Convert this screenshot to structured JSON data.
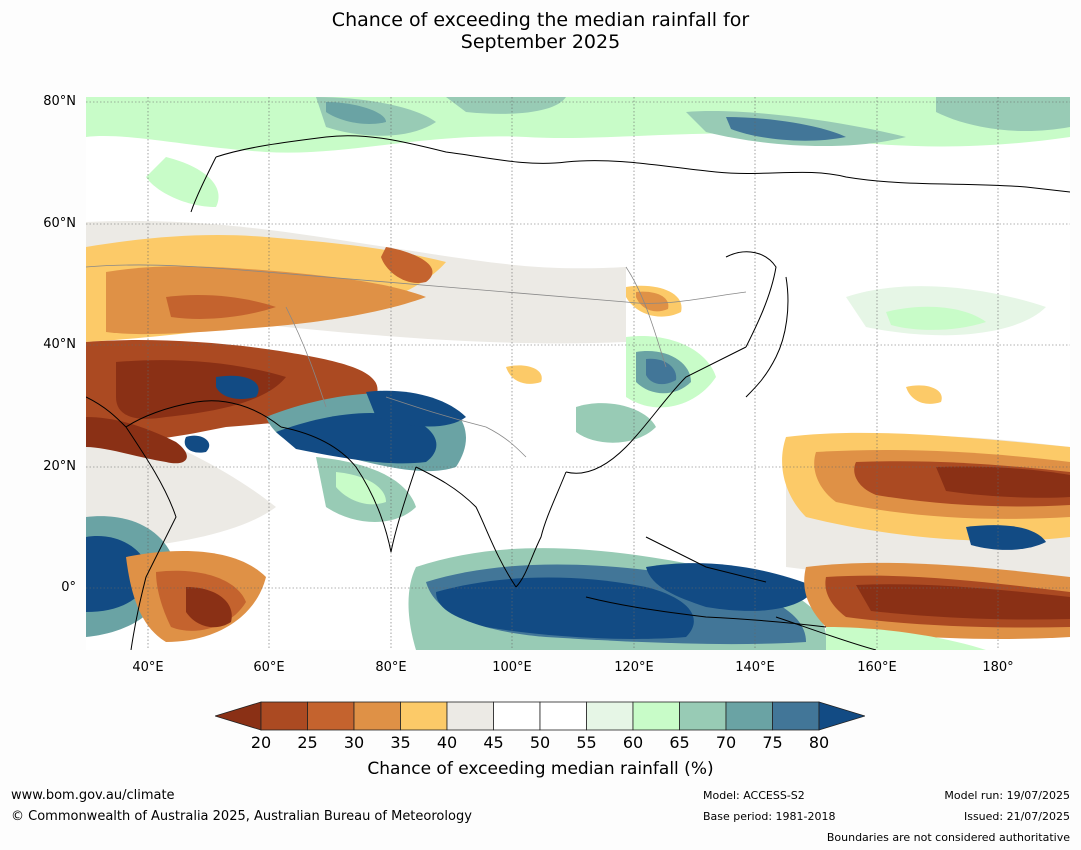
{
  "title_line1": "Chance of exceeding the median rainfall for",
  "title_line2": "September 2025",
  "map": {
    "lat_labels": [
      "80°N",
      "60°N",
      "40°N",
      "20°N",
      "0°"
    ],
    "lon_labels": [
      "40°E",
      "60°E",
      "80°E",
      "100°E",
      "120°E",
      "140°E",
      "160°E",
      "180°"
    ],
    "colors": {
      "c20": "#8a3015",
      "c25": "#ab4a22",
      "c30": "#c4632e",
      "c35": "#df9146",
      "c40": "#fcca68",
      "c45": "#eceae5",
      "c50": "#ffffff",
      "c55": "#ffffff",
      "c60": "#e6f6e6",
      "c65": "#c8fcc8",
      "c70": "#98cbb5",
      "c75": "#6aa3a4",
      "c80": "#427698",
      "c85": "#124b84"
    }
  },
  "colorbar": {
    "ticks": [
      "20",
      "25",
      "30",
      "35",
      "40",
      "45",
      "50",
      "55",
      "60",
      "65",
      "70",
      "75",
      "80"
    ],
    "label": "Chance of exceeding median rainfall (%)"
  },
  "footer": {
    "url": "www.bom.gov.au/climate",
    "copyright": "© Commonwealth of Australia 2025, Australian Bureau of Meteorology",
    "model": "Model: ACCESS-S2",
    "base_period": "Base period: 1981-2018",
    "model_run": "Model run: 19/07/2025",
    "issued": "Issued: 21/07/2025",
    "disclaimer": "Boundaries are not considered authoritative"
  }
}
